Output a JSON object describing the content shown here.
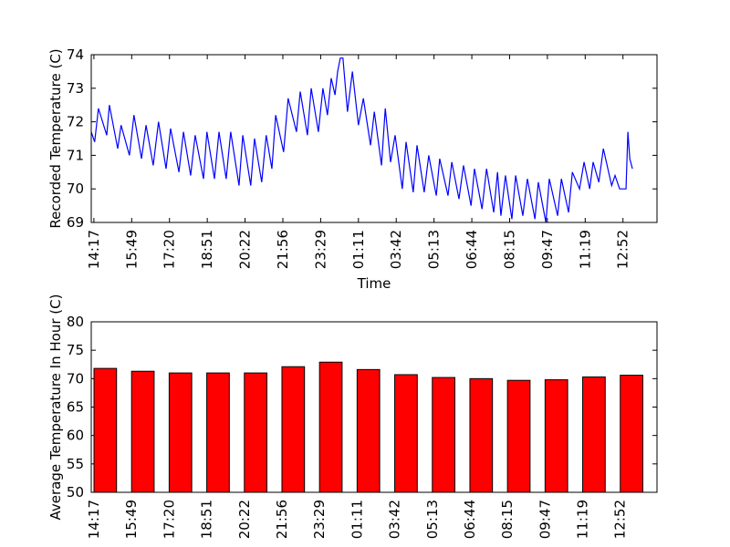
{
  "chart_data": [
    {
      "type": "line",
      "ylabel": "Recorded Temperature (C)",
      "xlabel": "Time",
      "xlim": [
        -0.07,
        14.9
      ],
      "xticks": [
        {
          "value": 0,
          "label": "14:17"
        },
        {
          "value": 1,
          "label": "15:49"
        },
        {
          "value": 2,
          "label": "17:20"
        },
        {
          "value": 3,
          "label": "18:51"
        },
        {
          "value": 4,
          "label": "20:22"
        },
        {
          "value": 5,
          "label": "21:56"
        },
        {
          "value": 6,
          "label": "23:29"
        },
        {
          "value": 7,
          "label": "01:11"
        },
        {
          "value": 8,
          "label": "03:42"
        },
        {
          "value": 9,
          "label": "05:13"
        },
        {
          "value": 10,
          "label": "06:44"
        },
        {
          "value": 11,
          "label": "08:15"
        },
        {
          "value": 12,
          "label": "09:47"
        },
        {
          "value": 13,
          "label": "11:19"
        },
        {
          "value": 14,
          "label": "12:52"
        }
      ],
      "ylim": [
        69,
        74
      ],
      "yticks": [
        69,
        70,
        71,
        72,
        73,
        74
      ],
      "color": "#0000ff",
      "x": [
        -0.07,
        0.02,
        0.12,
        0.34,
        0.41,
        0.63,
        0.72,
        0.94,
        1.06,
        1.26,
        1.38,
        1.57,
        1.71,
        1.91,
        2.03,
        2.25,
        2.37,
        2.56,
        2.68,
        2.9,
        2.99,
        3.19,
        3.31,
        3.5,
        3.62,
        3.84,
        3.94,
        4.15,
        4.25,
        4.44,
        4.56,
        4.71,
        4.81,
        5.02,
        5.14,
        5.36,
        5.46,
        5.65,
        5.75,
        5.94,
        6.06,
        6.18,
        6.28,
        6.38,
        6.45,
        6.52,
        6.59,
        6.71,
        6.84,
        7.0,
        7.13,
        7.32,
        7.42,
        7.61,
        7.71,
        7.85,
        7.97,
        8.16,
        8.26,
        8.45,
        8.55,
        8.74,
        8.86,
        9.06,
        9.15,
        9.37,
        9.47,
        9.66,
        9.78,
        9.98,
        10.07,
        10.27,
        10.39,
        10.58,
        10.68,
        10.77,
        10.89,
        11.06,
        11.16,
        11.35,
        11.47,
        11.67,
        11.76,
        11.96,
        12.05,
        12.27,
        12.37,
        12.56,
        12.66,
        12.85,
        12.97,
        13.12,
        13.21,
        13.36,
        13.48,
        13.7,
        13.79,
        13.91,
        14.08,
        14.13,
        14.18,
        14.25
      ],
      "values": [
        71.7,
        71.4,
        72.4,
        71.6,
        72.5,
        71.2,
        71.9,
        71.0,
        72.2,
        70.9,
        71.9,
        70.7,
        72.0,
        70.6,
        71.8,
        70.5,
        71.7,
        70.4,
        71.6,
        70.3,
        71.7,
        70.3,
        71.7,
        70.3,
        71.7,
        70.1,
        71.6,
        70.1,
        71.5,
        70.2,
        71.6,
        70.6,
        72.2,
        71.1,
        72.7,
        71.7,
        72.9,
        71.6,
        73.0,
        71.7,
        73.0,
        72.2,
        73.3,
        72.8,
        73.5,
        73.9,
        73.9,
        72.3,
        73.5,
        71.9,
        72.7,
        71.3,
        72.3,
        70.7,
        72.4,
        70.8,
        71.6,
        70.0,
        71.4,
        69.9,
        71.3,
        69.9,
        71.0,
        69.8,
        70.9,
        69.8,
        70.8,
        69.7,
        70.7,
        69.5,
        70.6,
        69.4,
        70.6,
        69.3,
        70.5,
        69.2,
        70.4,
        69.1,
        70.4,
        69.2,
        70.3,
        69.1,
        70.2,
        69.0,
        70.3,
        69.2,
        70.3,
        69.3,
        70.5,
        70.0,
        70.8,
        70.0,
        70.8,
        70.2,
        71.2,
        70.1,
        70.4,
        70.0,
        70.0,
        71.7,
        70.9,
        70.6
      ]
    },
    {
      "type": "bar",
      "ylabel": "Average Temperature In Hour (C)",
      "categories": [
        "14:17",
        "15:49",
        "17:20",
        "18:51",
        "20:22",
        "21:56",
        "23:29",
        "01:11",
        "03:42",
        "05:13",
        "06:44",
        "08:15",
        "09:47",
        "11:19",
        "12:52"
      ],
      "values": [
        71.8,
        71.3,
        71.0,
        71.0,
        71.0,
        72.1,
        72.9,
        71.6,
        70.7,
        70.2,
        70.0,
        69.7,
        69.8,
        70.3,
        70.6
      ],
      "color": "#ff0000",
      "ylim": [
        50,
        80
      ],
      "yticks": [
        50,
        55,
        60,
        65,
        70,
        75,
        80
      ]
    }
  ]
}
